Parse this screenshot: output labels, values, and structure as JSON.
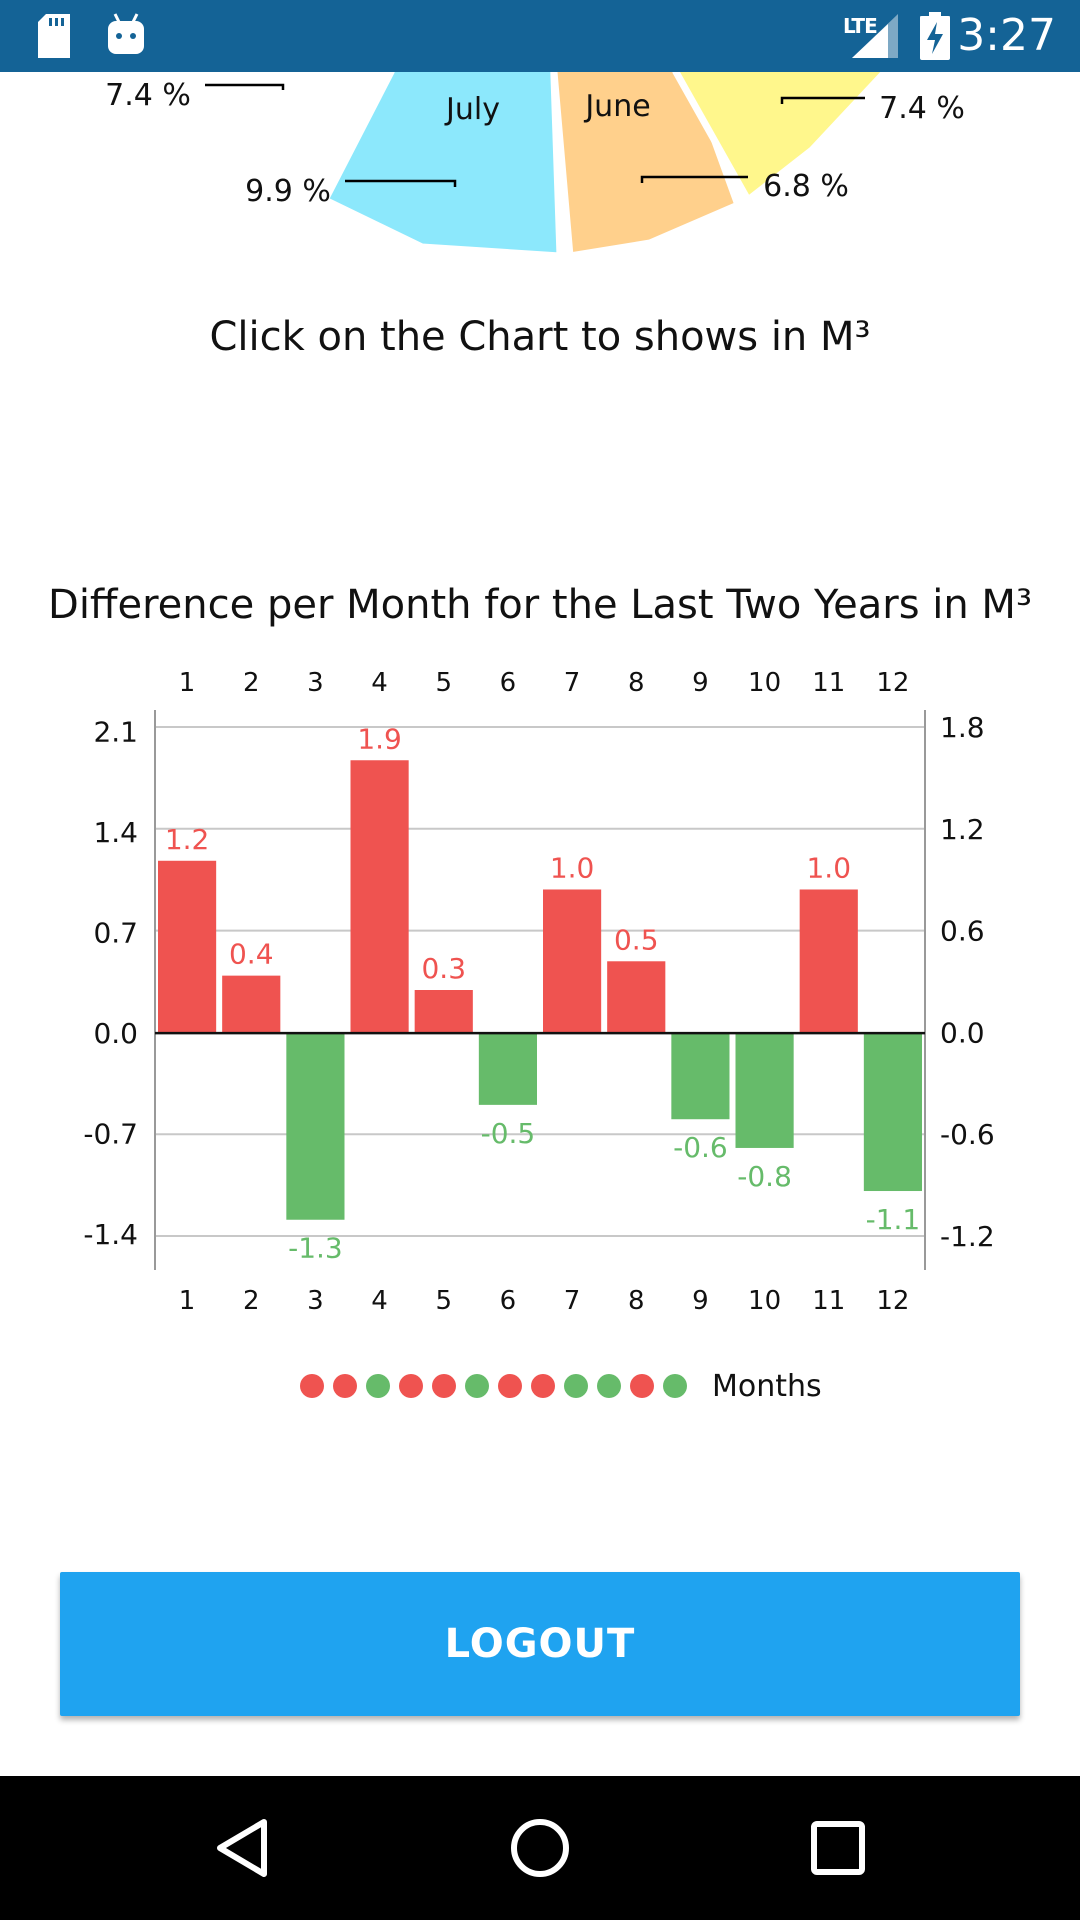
{
  "status_bar": {
    "time": "3:27",
    "network": "LTE",
    "icons": [
      "sd-card-icon",
      "android-icon",
      "signal-icon",
      "battery-charging-icon"
    ]
  },
  "pie": {
    "caption": "Click on the Chart to shows in M³",
    "slices": [
      {
        "label": "",
        "percent_label": "7.4 %",
        "color": "#ff8fa3"
      },
      {
        "label": "July",
        "percent_label": "9.9 %",
        "color": "#8ce8fc"
      },
      {
        "label": "June",
        "percent_label": "6.8 %",
        "color": "#ffd08c"
      },
      {
        "label": "",
        "percent_label": "7.4 %",
        "color": "#fff78c"
      }
    ]
  },
  "chart_data": {
    "type": "bar",
    "title": "Difference per Month for the Last Two Years in M³",
    "categories": [
      "1",
      "2",
      "3",
      "4",
      "5",
      "6",
      "7",
      "8",
      "9",
      "10",
      "11",
      "12"
    ],
    "values": [
      1.2,
      0.4,
      -1.3,
      1.9,
      0.3,
      -0.5,
      1.0,
      0.5,
      -0.6,
      -0.8,
      1.0,
      -1.1
    ],
    "value_labels": [
      "1.2",
      "0.4",
      "-1.3",
      "1.9",
      "0.3",
      "-0.5",
      "1.0",
      "0.5",
      "-0.6",
      "-0.8",
      "1.0",
      "-1.1"
    ],
    "left_axis_ticks": [
      "2.1",
      "1.4",
      "0.7",
      "0.0",
      "-0.7",
      "-1.4"
    ],
    "left_axis_values": [
      2.1,
      1.4,
      0.7,
      0.0,
      -0.7,
      -1.4
    ],
    "right_axis_ticks": [
      "1.8",
      "1.2",
      "0.6",
      "0.0",
      "-0.6",
      "-1.2"
    ],
    "right_axis_values": [
      1.8,
      1.2,
      0.6,
      0.0,
      -0.6,
      -1.2
    ],
    "ylim": [
      -1.65,
      2.25
    ],
    "right_ylim": [
      -1.4,
      1.9
    ],
    "positive_color": "#ef5350",
    "negative_color": "#66bb6a",
    "grid": true,
    "legend_label": "Months",
    "legend_placement": "bottom-center"
  },
  "logout": {
    "label": "LOGOUT"
  },
  "nav_bar": {
    "icons": [
      "back-icon",
      "home-icon",
      "recents-icon"
    ]
  }
}
